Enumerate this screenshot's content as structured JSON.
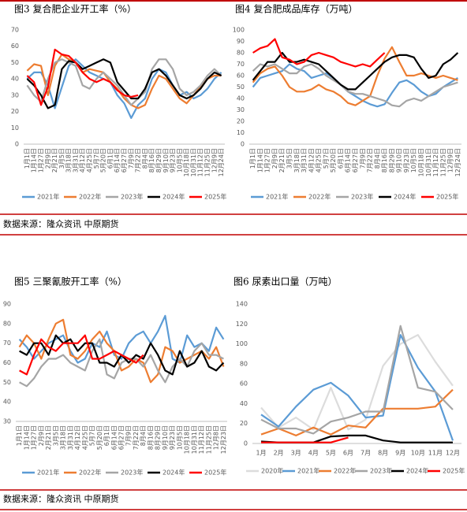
{
  "chart_data": [
    {
      "type": "line",
      "title": "图3 复合肥企业开工率（%）",
      "categories": [
        "1月1日",
        "1月14日",
        "1月27日",
        "2月9日",
        "2月21日",
        "3月5日",
        "3月18日",
        "3月31日",
        "4月12日",
        "4月25日",
        "5月7日",
        "5月20日",
        "6月1日",
        "6月14日",
        "6月27日",
        "7月9日",
        "7月22日",
        "8月4日",
        "8月16日",
        "8月29日",
        "9月10日",
        "9月23日",
        "10月5日",
        "10月18日",
        "10月31日",
        "11月12日",
        "11月25日",
        "12月9日",
        "12月24日"
      ],
      "ylim": [
        0,
        70
      ],
      "yticks": [
        0,
        10,
        20,
        30,
        40,
        50,
        60,
        70
      ],
      "grid": false,
      "series": [
        {
          "name": "2021年",
          "color": "#5b9bd5",
          "values": [
            40,
            44,
            44,
            36,
            22,
            35,
            48,
            52,
            48,
            44,
            42,
            40,
            38,
            30,
            25,
            16,
            24,
            28,
            40,
            46,
            44,
            36,
            30,
            32,
            28,
            30,
            34,
            40,
            44
          ]
        },
        {
          "name": "2022年",
          "color": "#ed7d31",
          "values": [
            45,
            49,
            48,
            30,
            48,
            55,
            52,
            50,
            44,
            46,
            45,
            44,
            38,
            34,
            28,
            24,
            22,
            24,
            34,
            42,
            40,
            34,
            28,
            25,
            30,
            35,
            40,
            42,
            42
          ]
        },
        {
          "name": "2023年",
          "color": "#a5a5a5",
          "values": [
            36,
            30,
            26,
            40,
            50,
            52,
            50,
            48,
            36,
            34,
            40,
            44,
            40,
            36,
            30,
            24,
            28,
            32,
            46,
            52,
            52,
            46,
            34,
            30,
            32,
            36,
            42,
            46,
            42
          ]
        },
        {
          "name": "2024年",
          "color": "#000000",
          "values": [
            40,
            36,
            30,
            22,
            24,
            46,
            51,
            50,
            46,
            48,
            50,
            52,
            50,
            38,
            33,
            28,
            28,
            34,
            44,
            46,
            42,
            36,
            30,
            28,
            30,
            34,
            40,
            44,
            42
          ]
        },
        {
          "name": "2025年",
          "color": "#ff0000",
          "values": [
            42,
            38,
            24,
            35,
            58,
            55,
            54,
            50,
            44,
            40,
            38,
            40,
            38,
            33,
            30,
            29,
            30,
            null,
            null,
            null,
            null,
            null,
            null,
            null,
            null,
            null,
            null,
            null,
            null
          ]
        }
      ]
    },
    {
      "type": "line",
      "title": "图4 复合肥成品库存（万吨）",
      "categories": [
        "1月1日",
        "1月14日",
        "1月27日",
        "2月9日",
        "2月21日",
        "3月5日",
        "3月18日",
        "3月31日",
        "4月12日",
        "4月25日",
        "5月7日",
        "5月20日",
        "6月1日",
        "6月14日",
        "6月27日",
        "7月9日",
        "7月22日",
        "8月4日",
        "8月16日",
        "8月29日",
        "9月10日",
        "9月23日",
        "10月5日",
        "10月18日",
        "10月31日",
        "11月12日",
        "11月25日",
        "12月9日",
        "12月24日"
      ],
      "ylim": [
        0,
        100
      ],
      "yticks": [
        0,
        10,
        20,
        30,
        40,
        50,
        60,
        70,
        80,
        90,
        100
      ],
      "grid": false,
      "series": [
        {
          "name": "2021年",
          "color": "#5b9bd5",
          "values": [
            50,
            58,
            60,
            62,
            64,
            70,
            66,
            64,
            58,
            60,
            62,
            58,
            52,
            46,
            42,
            38,
            35,
            33,
            35,
            45,
            54,
            56,
            52,
            46,
            42,
            44,
            50,
            54,
            58
          ]
        },
        {
          "name": "2022年",
          "color": "#ed7d31",
          "values": [
            54,
            62,
            66,
            68,
            60,
            50,
            46,
            46,
            48,
            52,
            48,
            46,
            42,
            36,
            34,
            38,
            42,
            60,
            75,
            85,
            72,
            60,
            60,
            62,
            60,
            58,
            60,
            58,
            56
          ]
        },
        {
          "name": "2023年",
          "color": "#a5a5a5",
          "values": [
            64,
            70,
            68,
            70,
            66,
            62,
            62,
            68,
            70,
            66,
            60,
            56,
            52,
            46,
            44,
            44,
            42,
            40,
            38,
            34,
            33,
            38,
            40,
            38,
            42,
            46,
            50,
            52,
            54
          ]
        },
        {
          "name": "2024年",
          "color": "#000000",
          "values": [
            56,
            64,
            72,
            72,
            80,
            72,
            72,
            74,
            72,
            70,
            64,
            58,
            52,
            48,
            48,
            54,
            60,
            66,
            72,
            76,
            78,
            78,
            76,
            66,
            58,
            60,
            70,
            74,
            80
          ]
        },
        {
          "name": "2025年",
          "color": "#ff0000",
          "values": [
            80,
            84,
            86,
            92,
            76,
            74,
            70,
            72,
            78,
            80,
            78,
            76,
            72,
            70,
            68,
            70,
            68,
            74,
            80,
            null,
            null,
            null,
            null,
            null,
            null,
            null,
            null,
            null,
            null
          ]
        }
      ]
    },
    {
      "type": "line",
      "title": "图5 三聚氰胺开工率（%）",
      "categories": [
        "1月1日",
        "1月14日",
        "1月27日",
        "2月9日",
        "2月21日",
        "3月5日",
        "3月18日",
        "3月31日",
        "4月12日",
        "4月25日",
        "5月7日",
        "5月20日",
        "6月1日",
        "6月14日",
        "6月27日",
        "7月9日",
        "7月22日",
        "8月4日",
        "8月16日",
        "8月29日",
        "9月10日",
        "9月23日",
        "10月5日",
        "10月18日",
        "10月31日",
        "11月12日",
        "11月25日",
        "12月8日",
        "12月23日"
      ],
      "ylim": [
        30,
        90
      ],
      "yticks": [
        30,
        40,
        50,
        60,
        70,
        80,
        90
      ],
      "grid": false,
      "series": [
        {
          "name": "2021年",
          "color": "#5b9bd5",
          "values": [
            72,
            68,
            62,
            66,
            70,
            72,
            74,
            66,
            60,
            62,
            70,
            68,
            76,
            64,
            62,
            70,
            74,
            76,
            70,
            76,
            84,
            62,
            60,
            74,
            68,
            70,
            66,
            78,
            72
          ]
        },
        {
          "name": "2022年",
          "color": "#ed7d31",
          "values": [
            68,
            74,
            70,
            62,
            72,
            80,
            82,
            64,
            62,
            66,
            72,
            76,
            70,
            66,
            56,
            58,
            62,
            60,
            50,
            54,
            68,
            66,
            60,
            62,
            64,
            66,
            62,
            68,
            58
          ]
        },
        {
          "name": "2023年",
          "color": "#a5a5a5",
          "values": [
            50,
            48,
            52,
            58,
            62,
            62,
            64,
            60,
            58,
            56,
            66,
            72,
            54,
            52,
            60,
            62,
            62,
            58,
            64,
            56,
            50,
            58,
            62,
            58,
            66,
            70,
            64,
            64,
            62
          ]
        },
        {
          "name": "2024年",
          "color": "#000000",
          "values": [
            66,
            64,
            70,
            70,
            64,
            74,
            70,
            72,
            66,
            70,
            70,
            60,
            60,
            58,
            64,
            60,
            64,
            62,
            70,
            64,
            56,
            54,
            66,
            58,
            60,
            66,
            58,
            56,
            60
          ]
        },
        {
          "name": "2025年",
          "color": "#ff0000",
          "values": [
            56,
            54,
            64,
            72,
            68,
            66,
            70,
            70,
            70,
            74,
            62,
            62,
            64,
            66,
            64,
            62,
            60,
            64,
            null,
            null,
            null,
            null,
            null,
            null,
            null,
            null,
            null,
            null,
            null
          ]
        }
      ]
    },
    {
      "type": "line",
      "title": "图6 尿素出口量（万吨）",
      "categories": [
        "1月",
        "2月",
        "3月",
        "4月",
        "5月",
        "6月",
        "7月",
        "8月",
        "9月",
        "10月",
        "11月",
        "12月"
      ],
      "ylim": [
        0,
        140
      ],
      "yticks": [
        0,
        20,
        40,
        60,
        80,
        100,
        120,
        140
      ],
      "grid": false,
      "series": [
        {
          "name": "2020年",
          "color": "#dcdcdc",
          "values": [
            36,
            16,
            26,
            14,
            56,
            14,
            24,
            78,
            100,
            109,
            82,
            58
          ]
        },
        {
          "name": "2021年",
          "color": "#5b9bd5",
          "values": [
            29,
            17,
            37,
            54,
            61,
            48,
            26,
            28,
            109,
            76,
            52,
            3
          ]
        },
        {
          "name": "2022年",
          "color": "#ed7d31",
          "values": [
            9,
            15,
            8,
            16,
            9,
            18,
            16,
            35,
            35,
            35,
            37,
            54
          ]
        },
        {
          "name": "2023年",
          "color": "#a5a5a5",
          "values": [
            24,
            15,
            15,
            10,
            22,
            26,
            32,
            32,
            118,
            56,
            52,
            34
          ]
        },
        {
          "name": "2024年",
          "color": "#000000",
          "values": [
            2,
            1,
            1,
            1,
            7,
            8,
            8,
            3,
            1,
            1,
            1,
            1
          ]
        },
        {
          "name": "2025年",
          "color": "#ff0000",
          "values": [
            1,
            1,
            1,
            1,
            1,
            6,
            null,
            null,
            null,
            null,
            null,
            null
          ]
        }
      ]
    }
  ],
  "sources": [
    "数据来源：隆众资讯 中原期货",
    "数据来源：隆众资讯 中原期货"
  ]
}
